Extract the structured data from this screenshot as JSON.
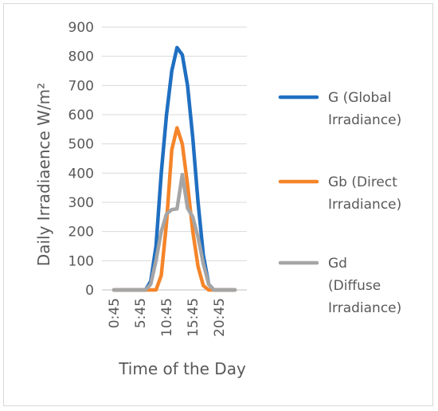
{
  "chart_data": {
    "type": "line",
    "title": "",
    "xlabel": "Time of the Day",
    "ylabel": "Daily Irradiaence W/m²",
    "ylim": [
      0,
      900
    ],
    "yticks": [
      "0",
      "100",
      "200",
      "300",
      "400",
      "500",
      "600",
      "700",
      "800",
      "900"
    ],
    "x": [
      "0:45",
      "1:45",
      "2:45",
      "3:45",
      "4:45",
      "5:45",
      "6:45",
      "7:45",
      "8:45",
      "9:45",
      "10:45",
      "11:45",
      "12:45",
      "13:45",
      "14:45",
      "15:45",
      "16:45",
      "17:45",
      "18:45",
      "19:45",
      "20:45",
      "21:45",
      "22:45",
      "23:45"
    ],
    "xtick_labels": [
      "0:45",
      "5:45",
      "10:45",
      "15:45",
      "20:45"
    ],
    "grid": true,
    "legend_position": "right",
    "series": [
      {
        "name": "G (Global Irradiance)",
        "legend_lines": [
          "G (Global",
          "Irradiance)"
        ],
        "color": "#1f6fc1",
        "values": [
          0,
          0,
          0,
          0,
          0,
          0,
          0,
          30,
          150,
          400,
          600,
          750,
          830,
          805,
          700,
          520,
          300,
          120,
          20,
          0,
          0,
          0,
          0,
          0
        ]
      },
      {
        "name": "Gb (Direct Irradiance)",
        "legend_lines": [
          "Gb (Direct",
          "Irradiance)"
        ],
        "color": "#f5852a",
        "values": [
          0,
          0,
          0,
          0,
          0,
          0,
          0,
          0,
          0,
          50,
          230,
          480,
          555,
          500,
          360,
          200,
          80,
          15,
          0,
          0,
          0,
          0,
          0,
          0
        ]
      },
      {
        "name": "Gd (Diffuse Irradiance)",
        "legend_lines": [
          "Gd",
          "(Diffuse",
          "Irradiance)"
        ],
        "color": "#a5a5a5",
        "values": [
          0,
          0,
          0,
          0,
          0,
          0,
          0,
          20,
          100,
          200,
          260,
          275,
          278,
          395,
          280,
          250,
          180,
          90,
          20,
          0,
          0,
          0,
          0,
          0
        ]
      }
    ]
  }
}
